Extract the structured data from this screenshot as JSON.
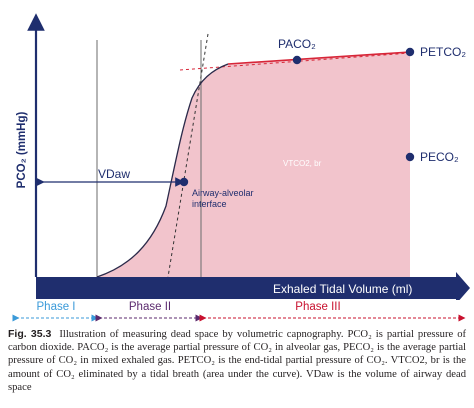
{
  "figure": {
    "y_axis_label": "PCO₂ (mmHg)",
    "x_axis_label": "Exhaled Tidal Volume (ml)",
    "labels": {
      "paco2": "PACO₂",
      "petco2": "PETCO₂",
      "peco2": "PECO₂",
      "vtco2": "VTCO2, br",
      "vdaw": "VDaw",
      "airway_interface": "Airway-alveolar interface"
    },
    "phases": [
      "Phase I",
      "Phase II",
      "Phase III"
    ],
    "colors": {
      "axis_navy": "#1f2e6e",
      "area_pink": "#f2c4cc",
      "curve_red": "#d72638",
      "phase1_blue": "#3a9ad9",
      "phase2_purple": "#5b2a6e",
      "phase3_red": "#c8102e",
      "marker_navy": "#1f2e6e"
    }
  },
  "caption": {
    "label": "Fig. 35.3",
    "text": "Illustration of measuring dead space by volumetric capnography. PCO₂ is partial pressure of carbon dioxide. PACO₂ is the average partial pressure of CO₂ in alveolar gas, PECO₂ is the average partial pressure of CO₂ in mixed exhaled gas. PETCO₂ is the end-tidal partial pressure of CO₂. VTCO2, br is the amount of CO₂ eliminated by a tidal breath (area under the curve). VDaw is the volume of airway dead space"
  }
}
